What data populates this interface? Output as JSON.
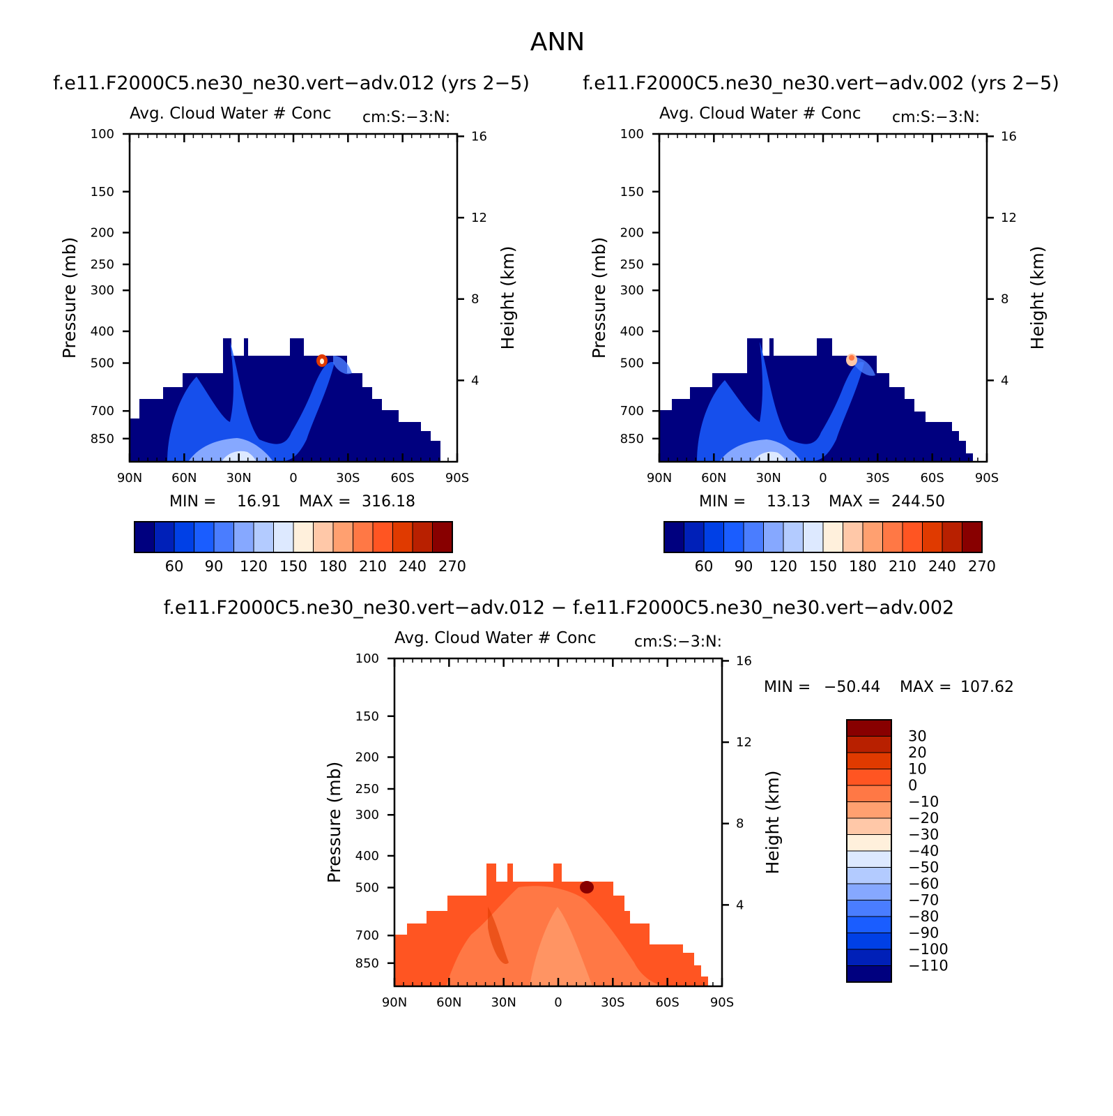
{
  "figure": {
    "season": "ANN",
    "panels": [
      {
        "case_title": "f.e11.F2000C5.ne30_ne30.vert−adv.012 (yrs 2−5)",
        "var_title": "Avg. Cloud Water # Conc",
        "units": "cm:S:−3:N:",
        "ylabel": "Pressure (mb)",
        "ylabel_right": "Height (km)",
        "min_label": "MIN =",
        "min_value": "16.91",
        "max_label": "MAX =",
        "max_value": "316.18"
      },
      {
        "case_title": "f.e11.F2000C5.ne30_ne30.vert−adv.002 (yrs 2−5)",
        "var_title": "Avg. Cloud Water # Conc",
        "units": "cm:S:−3:N:",
        "ylabel": "Pressure (mb)",
        "ylabel_right": "Height (km)",
        "min_label": "MIN =",
        "min_value": "13.13",
        "max_label": "MAX =",
        "max_value": "244.50"
      },
      {
        "case_title": "f.e11.F2000C5.ne30_ne30.vert−adv.012 − f.e11.F2000C5.ne30_ne30.vert−adv.002",
        "var_title": "Avg. Cloud Water # Conc",
        "units": "cm:S:−3:N:",
        "ylabel": "Pressure (mb)",
        "ylabel_right": "Height (km)",
        "min_label": "MIN =",
        "min_value": "−50.44",
        "max_label": "MAX =",
        "max_value": "107.62"
      }
    ]
  },
  "chart_data": [
    {
      "type": "heatmap",
      "title": "Avg. Cloud Water # Conc",
      "ylabel": "Pressure (mb)",
      "y2label": "Height (km)",
      "x_ticks": [
        "90N",
        "60N",
        "30N",
        "0",
        "30S",
        "60S",
        "90S"
      ],
      "x_tick_values": [
        90,
        60,
        30,
        0,
        -30,
        -60,
        -90
      ],
      "y_ticks": [
        "100",
        "150",
        "200",
        "250",
        "300",
        "400",
        "500",
        "700",
        "850"
      ],
      "y_tick_values": [
        100,
        150,
        200,
        250,
        300,
        400,
        500,
        700,
        850
      ],
      "y2_ticks": [
        "4",
        "8",
        "12",
        "16"
      ],
      "ylim": [
        100,
        1000
      ],
      "y_scale": "log",
      "colorbar_labels": [
        "60",
        "90",
        "120",
        "150",
        "180",
        "210",
        "240",
        "270"
      ],
      "colorbar_colors": [
        "#00007f",
        "#0020b8",
        "#0040e6",
        "#1a5dff",
        "#4a7dff",
        "#86a8ff",
        "#b3cbff",
        "#dde9ff",
        "#fff0dc",
        "#ffc8a8",
        "#ffa070",
        "#ff7845",
        "#ff5522",
        "#e03a00",
        "#b82000",
        "#880000"
      ],
      "min": 16.91,
      "max": 316.18
    },
    {
      "type": "heatmap",
      "title": "Avg. Cloud Water # Conc",
      "ylabel": "Pressure (mb)",
      "y2label": "Height (km)",
      "x_ticks": [
        "90N",
        "60N",
        "30N",
        "0",
        "30S",
        "60S",
        "90S"
      ],
      "x_tick_values": [
        90,
        60,
        30,
        0,
        -30,
        -60,
        -90
      ],
      "y_ticks": [
        "100",
        "150",
        "200",
        "250",
        "300",
        "400",
        "500",
        "700",
        "850"
      ],
      "y_tick_values": [
        100,
        150,
        200,
        250,
        300,
        400,
        500,
        700,
        850
      ],
      "y2_ticks": [
        "4",
        "8",
        "12",
        "16"
      ],
      "ylim": [
        100,
        1000
      ],
      "y_scale": "log",
      "colorbar_labels": [
        "60",
        "90",
        "120",
        "150",
        "180",
        "210",
        "240",
        "270"
      ],
      "colorbar_colors": [
        "#00007f",
        "#0020b8",
        "#0040e6",
        "#1a5dff",
        "#4a7dff",
        "#86a8ff",
        "#b3cbff",
        "#dde9ff",
        "#fff0dc",
        "#ffc8a8",
        "#ffa070",
        "#ff7845",
        "#ff5522",
        "#e03a00",
        "#b82000",
        "#880000"
      ],
      "min": 13.13,
      "max": 244.5
    },
    {
      "type": "heatmap",
      "title": "Avg. Cloud Water # Conc",
      "ylabel": "Pressure (mb)",
      "y2label": "Height (km)",
      "x_ticks": [
        "90N",
        "60N",
        "30N",
        "0",
        "30S",
        "60S",
        "90S"
      ],
      "x_tick_values": [
        90,
        60,
        30,
        0,
        -30,
        -60,
        -90
      ],
      "y_ticks": [
        "100",
        "150",
        "200",
        "250",
        "300",
        "400",
        "500",
        "700",
        "850"
      ],
      "y_tick_values": [
        100,
        150,
        200,
        250,
        300,
        400,
        500,
        700,
        850
      ],
      "y2_ticks": [
        "4",
        "8",
        "12",
        "16"
      ],
      "ylim": [
        100,
        1000
      ],
      "y_scale": "log",
      "colorbar_labels": [
        "30",
        "20",
        "10",
        "0",
        "−10",
        "−20",
        "−30",
        "−40",
        "−50",
        "−60",
        "−70",
        "−80",
        "−90",
        "−100",
        "−110"
      ],
      "colorbar_colors": [
        "#880000",
        "#b82000",
        "#e03a00",
        "#ff5522",
        "#ff7845",
        "#ffa070",
        "#ffc8a8",
        "#fff0dc",
        "#dde9ff",
        "#b3cbff",
        "#86a8ff",
        "#4a7dff",
        "#1a5dff",
        "#0040e6",
        "#0020b8",
        "#00007f"
      ],
      "min": -50.44,
      "max": 107.62
    }
  ]
}
